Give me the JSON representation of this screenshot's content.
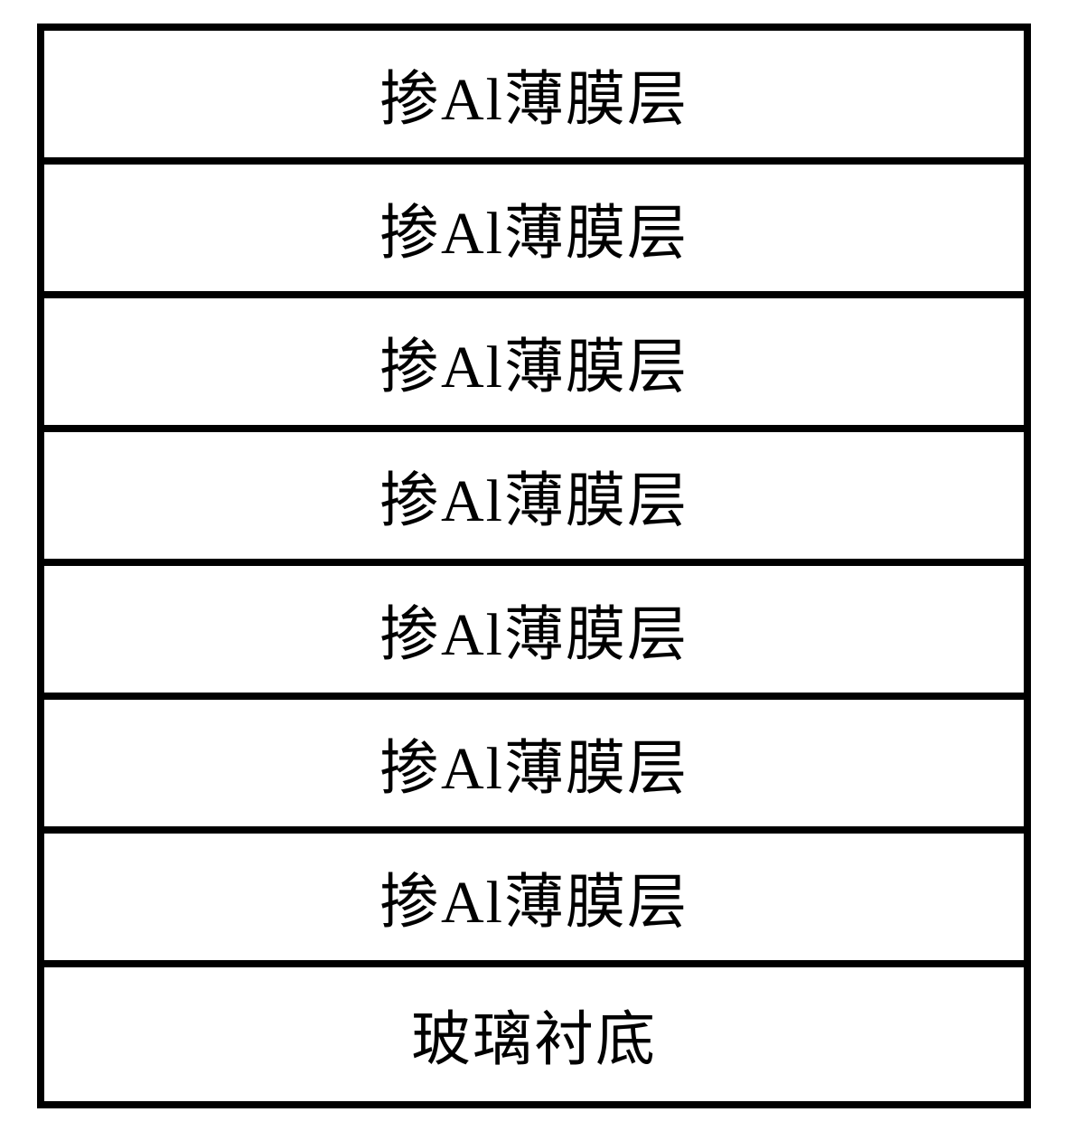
{
  "diagram": {
    "type": "layer-stack",
    "background_color": "#ffffff",
    "border_color": "#000000",
    "border_width": 8,
    "text_color": "#000000",
    "font_size": 66,
    "font_family": "SimSun",
    "layer_height": 148,
    "total_width": 1100,
    "layers": [
      {
        "label": "掺Al薄膜层"
      },
      {
        "label": "掺Al薄膜层"
      },
      {
        "label": "掺Al薄膜层"
      },
      {
        "label": "掺Al薄膜层"
      },
      {
        "label": "掺Al薄膜层"
      },
      {
        "label": "掺Al薄膜层"
      },
      {
        "label": "掺Al薄膜层"
      },
      {
        "label": "玻璃衬底"
      }
    ]
  }
}
